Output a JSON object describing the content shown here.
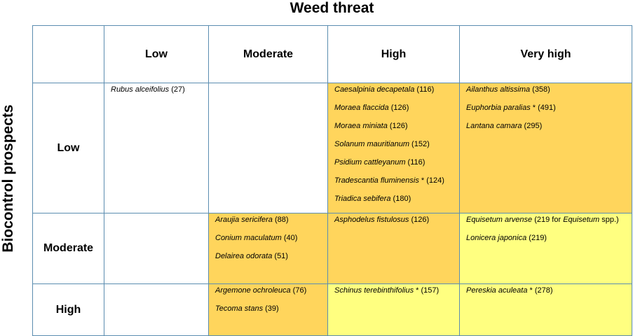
{
  "title_x": "Weed threat",
  "title_y": "Biocontrol prospects",
  "columns": [
    "Low",
    "Moderate",
    "High",
    "Very high"
  ],
  "rows": [
    "Low",
    "Moderate",
    "High"
  ],
  "colors": {
    "orange": "#ffd55c",
    "yellow": "#ffff80",
    "white": "#ffffff",
    "border": "#5b8db0"
  },
  "cells": {
    "r0c0": [
      {
        "species": "Rubus alceifolius",
        "note": " (27)"
      }
    ],
    "r0c1": [],
    "r0c2": [
      {
        "species": "Caesalpinia decapetala",
        "note": " (116)"
      },
      {
        "species": "Moraea flaccida",
        "note": " (126)"
      },
      {
        "species": "Moraea miniata",
        "note": " (126)"
      },
      {
        "species": "Solanum mauritianum",
        "note": " (152)"
      },
      {
        "species": "Psidium cattleyanum",
        "note": " (116)"
      },
      {
        "species": "Tradescantia fluminensis",
        "note": " * (124)"
      },
      {
        "species": "Triadica sebifera",
        "note": " (180)"
      }
    ],
    "r0c3": [
      {
        "species": "Ailanthus altissima",
        "note": " (358)"
      },
      {
        "species": "Euphorbia paralias",
        "note": " * (491)"
      },
      {
        "species": "Lantana camara",
        "note": " (295)"
      }
    ],
    "r1c0": [],
    "r1c1": [
      {
        "species": "Araujia sericifera",
        "note": " (88)"
      },
      {
        "species": "Conium maculatum",
        "note": " (40)"
      },
      {
        "species": "Delairea odorata",
        "note": " (51)"
      }
    ],
    "r1c2": [
      {
        "species": "Asphodelus fistulosus",
        "note": " (126)"
      }
    ],
    "r1c3": [
      {
        "species": "Equisetum arvense",
        "note": " (219 for ",
        "species2": "Equisetum",
        "note2": " spp.)"
      },
      {
        "species": "Lonicera japonica",
        "note": " (219)"
      }
    ],
    "r2c0": [],
    "r2c1": [
      {
        "species": "Argemone ochroleuca",
        "note": " (76)"
      },
      {
        "species": "Tecoma stans",
        "note": " (39)"
      }
    ],
    "r2c2": [
      {
        "species": "Schinus terebinthifolius",
        "note": " * (157)"
      }
    ],
    "r2c3": [
      {
        "species": "Pereskia aculeata",
        "note": " * (278)"
      }
    ]
  }
}
